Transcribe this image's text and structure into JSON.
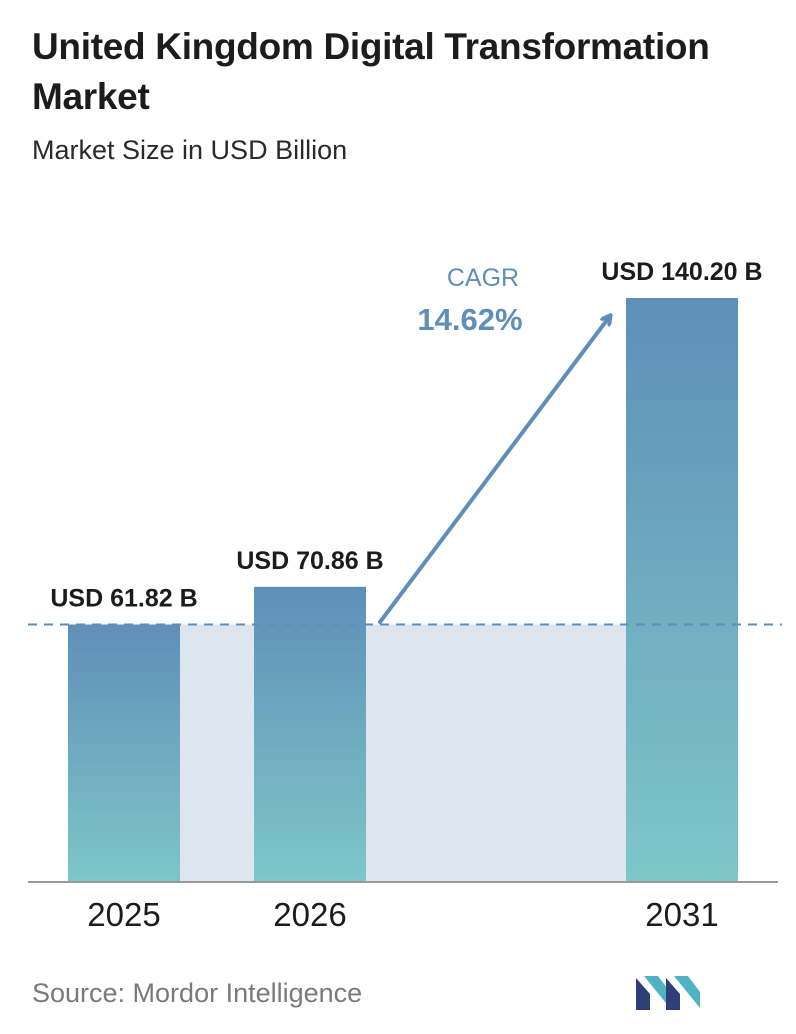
{
  "header": {
    "title": "United Kingdom Digital Transformation Market",
    "subtitle": "Market Size in USD Billion"
  },
  "chart_data": {
    "type": "bar",
    "categories": [
      "2025",
      "2026",
      "2031"
    ],
    "values": [
      61.82,
      70.86,
      140.2
    ],
    "value_labels": [
      "USD 61.82 B",
      "USD 70.86 B",
      "USD 140.20 B"
    ],
    "cagr_label": "CAGR",
    "cagr_value": "14.62%",
    "ylim": [
      0,
      140.2
    ],
    "grid": false,
    "colors": {
      "bar_top": "#5f8fb8",
      "bar_bottom": "#7ec6c8",
      "band": "#dde6ef",
      "reference_line": "#5f8fb8",
      "arrow": "#5f8fb8",
      "cagr_text": "#5f8fb8"
    }
  },
  "footer": {
    "source": "Source:  Mordor Intelligence"
  },
  "logo": {
    "icon": "mordor-intelligence-logo",
    "colors": [
      "#2f3f77",
      "#4fb3c3"
    ]
  }
}
